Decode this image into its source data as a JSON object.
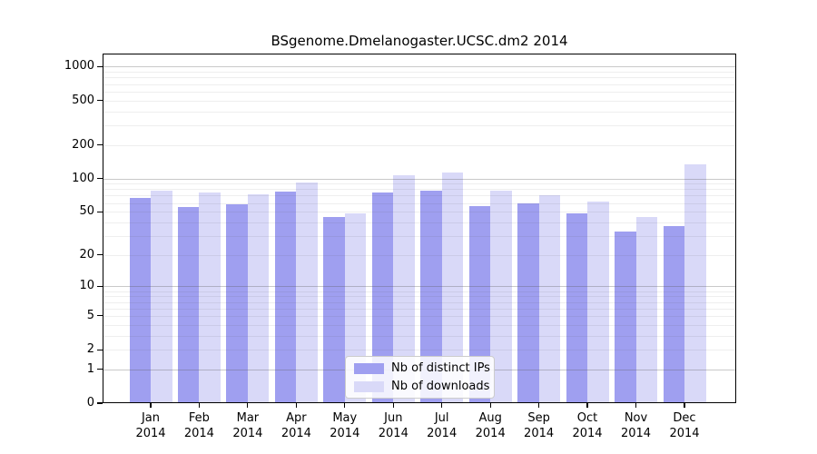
{
  "title": "BSgenome.Dmelanogaster.UCSC.dm2 2014",
  "legend": {
    "items": [
      {
        "label": "Nb of distinct IPs",
        "color": "#9f9ff0"
      },
      {
        "label": "Nb of downloads",
        "color": "#d9d9f8"
      }
    ]
  },
  "colors": {
    "bar_distinct_ips": "#9f9ff0",
    "bar_downloads": "#d9d9f8",
    "axis": "#000000",
    "grid_major": "#c9c9c9",
    "grid_minor": "#eeeeee",
    "background": "#ffffff",
    "legend_border": "#cccccc"
  },
  "chart_data": {
    "type": "bar",
    "title": "BSgenome.Dmelanogaster.UCSC.dm2 2014",
    "categories": [
      "Jan\n2014",
      "Feb\n2014",
      "Mar\n2014",
      "Apr\n2014",
      "May\n2014",
      "Jun\n2014",
      "Jul\n2014",
      "Aug\n2014",
      "Sep\n2014",
      "Oct\n2014",
      "Nov\n2014",
      "Dec\n2014"
    ],
    "series": [
      {
        "name": "Nb of distinct IPs",
        "color": "#9f9ff0",
        "values": [
          67,
          55,
          58,
          76,
          45,
          75,
          78,
          56,
          60,
          48,
          33,
          37
        ]
      },
      {
        "name": "Nb of downloads",
        "color": "#d9d9f8",
        "values": [
          77,
          74,
          72,
          92,
          48,
          107,
          112,
          78,
          70,
          62,
          45,
          134
        ]
      }
    ],
    "xlabel": "",
    "ylabel": "",
    "yscale": "log1p",
    "yticks": [
      0,
      1,
      2,
      5,
      10,
      20,
      50,
      100,
      200,
      500,
      1000
    ],
    "ylim": [
      0,
      1286
    ],
    "grid": "horizontal; faint minor lines at 2-9 per decade, darker lines at 1, 10, 100, 1000",
    "legend_position": "lower center inside plot area"
  }
}
